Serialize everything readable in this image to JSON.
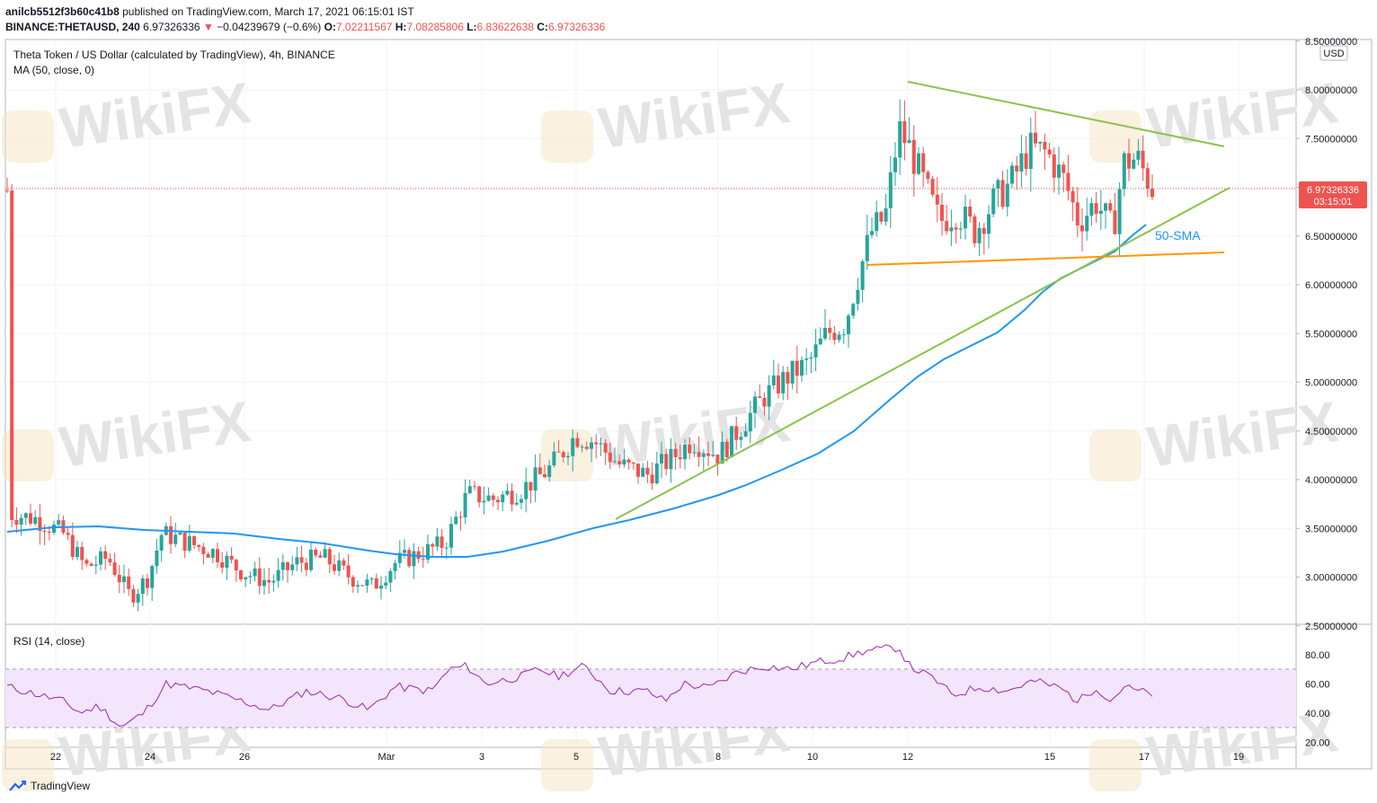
{
  "header": {
    "publisher": "anilcb5512f3b60c41b8",
    "published_text": "published on TradingView.com, March 17, 2021 06:15:01 IST",
    "symbol": "BINANCE:THETAUSD, 240",
    "price": "6.97326336",
    "change": "−0.04239679 (−0.6%)",
    "o_label": "O:",
    "o": "7.02211567",
    "h_label": "H:",
    "h": "7.08285806",
    "l_label": "L:",
    "l": "6.83622638",
    "c_label": "C:",
    "c": "6.97326336"
  },
  "legend": {
    "title": "Theta Token / US Dollar (calculated by TradingView), 4h, BINANCE",
    "ma": "MA (50, close, 0)",
    "rsi": "RSI (14, close)"
  },
  "axis": {
    "currency": "USD",
    "price_ticks": [
      "8.50000000",
      "8.00000000",
      "7.50000000",
      "7.00000000",
      "6.50000000",
      "6.00000000",
      "5.50000000",
      "5.00000000",
      "4.50000000",
      "4.00000000",
      "3.50000000",
      "3.00000000",
      "2.50000000"
    ],
    "rsi_ticks": [
      "80.00",
      "60.00",
      "40.00",
      "20.00"
    ],
    "x_ticks": [
      "22",
      "24",
      "26",
      "Mar",
      "3",
      "5",
      "8",
      "10",
      "12",
      "15",
      "17",
      "19"
    ]
  },
  "last_price_label": {
    "price": "6.97326336",
    "countdown": "03:15:01"
  },
  "annotation": "50-SMA",
  "watermark": "WikiFX",
  "footer": {
    "brand": "TradingView"
  },
  "colors": {
    "up": "#26a69a",
    "down": "#ef5350",
    "sma": "#2196f3",
    "trendline": "#8bc34a",
    "support": "#ff9800",
    "rsi": "#9c27b0",
    "rsi_band": "#f3e5fc"
  },
  "chart_data": {
    "type": "candlestick",
    "title": "Theta Token / US Dollar (calculated by TradingView), 4h, BINANCE",
    "price_range": [
      2.5,
      8.5
    ],
    "x_range": [
      21.5,
      19.5
    ],
    "series": [
      {
        "name": "MA (50, close, 0)",
        "x": [
          21,
          22,
          23,
          24,
          25,
          26,
          27,
          28,
          29,
          30,
          31,
          32,
          33,
          34,
          35,
          36,
          37,
          38,
          39,
          40,
          41,
          42,
          43
        ],
        "values": [
          3.45,
          3.5,
          3.5,
          3.48,
          3.47,
          3.45,
          3.39,
          3.25,
          3.17,
          3.2,
          3.3,
          3.4,
          3.55,
          3.65,
          3.8,
          3.9,
          4.1,
          4.3,
          4.65,
          5.1,
          5.45,
          5.75,
          6.2
        ]
      },
      {
        "name": "RSI (14, close)",
        "levels": [
          70,
          30
        ]
      }
    ],
    "sample_candles": [
      {
        "t": "Feb 22",
        "o": 3.7,
        "h": 3.75,
        "l": 3.55,
        "c": 3.62
      },
      {
        "t": "Feb 24",
        "o": 2.85,
        "h": 3.55,
        "l": 2.6,
        "c": 3.4
      },
      {
        "t": "Mar 1",
        "o": 2.85,
        "h": 3.1,
        "l": 2.8,
        "c": 3.05
      },
      {
        "t": "Mar 5",
        "o": 4.4,
        "h": 4.7,
        "l": 4.0,
        "c": 4.5
      },
      {
        "t": "Mar 8",
        "o": 4.15,
        "h": 4.4,
        "l": 4.05,
        "c": 4.3
      },
      {
        "t": "Mar 11",
        "o": 6.2,
        "h": 7.2,
        "l": 6.15,
        "c": 7.0
      },
      {
        "t": "Mar 12",
        "o": 7.6,
        "h": 8.05,
        "l": 6.85,
        "c": 7.0
      },
      {
        "t": "Mar 15",
        "o": 7.5,
        "h": 7.75,
        "l": 6.7,
        "c": 7.0
      },
      {
        "t": "Mar 16",
        "o": 6.6,
        "h": 7.65,
        "l": 6.3,
        "c": 7.3
      },
      {
        "t": "Mar 17",
        "o": 7.02,
        "h": 7.08,
        "l": 6.84,
        "c": 6.97
      }
    ]
  }
}
